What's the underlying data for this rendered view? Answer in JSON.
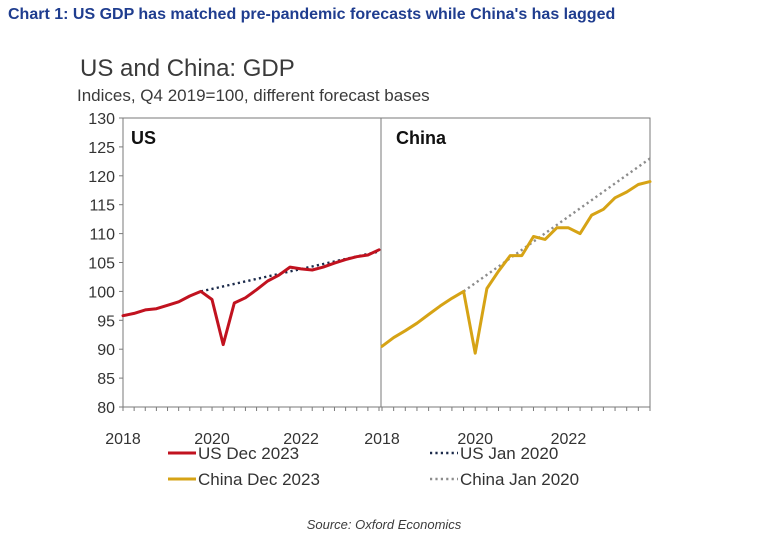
{
  "heading": "Chart 1: US GDP has matched pre-pandemic forecasts while China's has lagged",
  "source": "Source: Oxford Economics",
  "colors": {
    "heading": "#1f3d8f",
    "us_actual": "#c1121f",
    "us_forecast": "#1b2a4a",
    "china_actual": "#d6a315",
    "china_forecast": "#8c8c8c"
  },
  "chart_data": {
    "type": "line",
    "title": "US and China: GDP",
    "subtitle": "Indices, Q4 2019=100, different forecast bases",
    "ylabel": "",
    "xlabel": "",
    "ylim": [
      80,
      130
    ],
    "yticks": [
      80,
      85,
      90,
      95,
      100,
      105,
      110,
      115,
      120,
      125,
      130
    ],
    "grid": false,
    "panels": [
      {
        "label": "US",
        "xlim": [
          2018.0,
          2023.75
        ],
        "xticks": [
          2018,
          2020,
          2022
        ],
        "series": [
          {
            "name": "US Dec 2023",
            "style": "solid",
            "color": "#c1121f",
            "x": [
              2018.0,
              2018.25,
              2018.5,
              2018.75,
              2019.0,
              2019.25,
              2019.5,
              2019.75,
              2020.0,
              2020.25,
              2020.5,
              2020.75,
              2021.0,
              2021.25,
              2021.5,
              2021.75,
              2022.0,
              2022.25,
              2022.5,
              2022.75,
              2023.0,
              2023.25,
              2023.5,
              2023.75
            ],
            "y": [
              95.8,
              96.2,
              96.8,
              97.0,
              97.6,
              98.2,
              99.2,
              100.0,
              98.6,
              90.8,
              98.0,
              98.9,
              100.3,
              101.8,
              102.8,
              104.2,
              103.9,
              103.7,
              104.2,
              104.9,
              105.5,
              106.0,
              106.3,
              107.2
            ]
          },
          {
            "name": "US Jan 2020",
            "style": "dotted",
            "color": "#1b2a4a",
            "x": [
              2019.75,
              2023.75
            ],
            "y": [
              100.0,
              106.9
            ]
          }
        ]
      },
      {
        "label": "China",
        "xlim": [
          2018.0,
          2023.75
        ],
        "xticks": [
          2018,
          2020,
          2022
        ],
        "series": [
          {
            "name": "China Dec 2023",
            "style": "solid",
            "color": "#d6a315",
            "x": [
              2018.0,
              2018.25,
              2018.5,
              2018.75,
              2019.0,
              2019.25,
              2019.5,
              2019.75,
              2020.0,
              2020.25,
              2020.5,
              2020.75,
              2021.0,
              2021.25,
              2021.5,
              2021.75,
              2022.0,
              2022.25,
              2022.5,
              2022.75,
              2023.0,
              2023.25,
              2023.5,
              2023.75
            ],
            "y": [
              90.5,
              92.0,
              93.2,
              94.5,
              96.0,
              97.5,
              98.8,
              100.0,
              89.3,
              100.5,
              103.5,
              106.2,
              106.2,
              109.5,
              109.0,
              111.0,
              111.0,
              110.0,
              113.2,
              114.2,
              116.2,
              117.2,
              118.5,
              119.0
            ]
          },
          {
            "name": "China Jan 2020",
            "style": "dotted",
            "color": "#8c8c8c",
            "x": [
              2019.75,
              2023.75
            ],
            "y": [
              100.0,
              123.0
            ]
          }
        ]
      }
    ],
    "legend": {
      "placement": "bottom",
      "entries": [
        "US Dec 2023",
        "US Jan 2020",
        "China Dec 2023",
        "China Jan 2020"
      ]
    }
  }
}
